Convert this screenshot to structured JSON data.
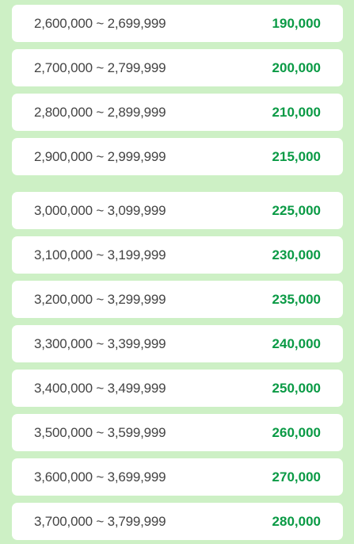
{
  "rows": [
    {
      "range": "2,600,000 ~ 2,699,999",
      "amount": "190,000"
    },
    {
      "range": "2,700,000 ~ 2,799,999",
      "amount": "200,000"
    },
    {
      "range": "2,800,000 ~ 2,899,999",
      "amount": "210,000"
    },
    {
      "range": "2,900,000 ~ 2,999,999",
      "amount": "215,000"
    },
    {
      "range": "3,000,000 ~ 3,099,999",
      "amount": "225,000"
    },
    {
      "range": "3,100,000 ~ 3,199,999",
      "amount": "230,000"
    },
    {
      "range": "3,200,000 ~ 3,299,999",
      "amount": "235,000"
    },
    {
      "range": "3,300,000 ~ 3,399,999",
      "amount": "240,000"
    },
    {
      "range": "3,400,000 ~ 3,499,999",
      "amount": "250,000"
    },
    {
      "range": "3,500,000 ~ 3,599,999",
      "amount": "260,000"
    },
    {
      "range": "3,600,000 ~ 3,699,999",
      "amount": "270,000"
    },
    {
      "range": "3,700,000 ~ 3,799,999",
      "amount": "280,000"
    }
  ],
  "colors": {
    "background": "#cdf0c5",
    "row": "#ffffff",
    "range_text": "#444444",
    "amount_text": "#0a9a45"
  }
}
